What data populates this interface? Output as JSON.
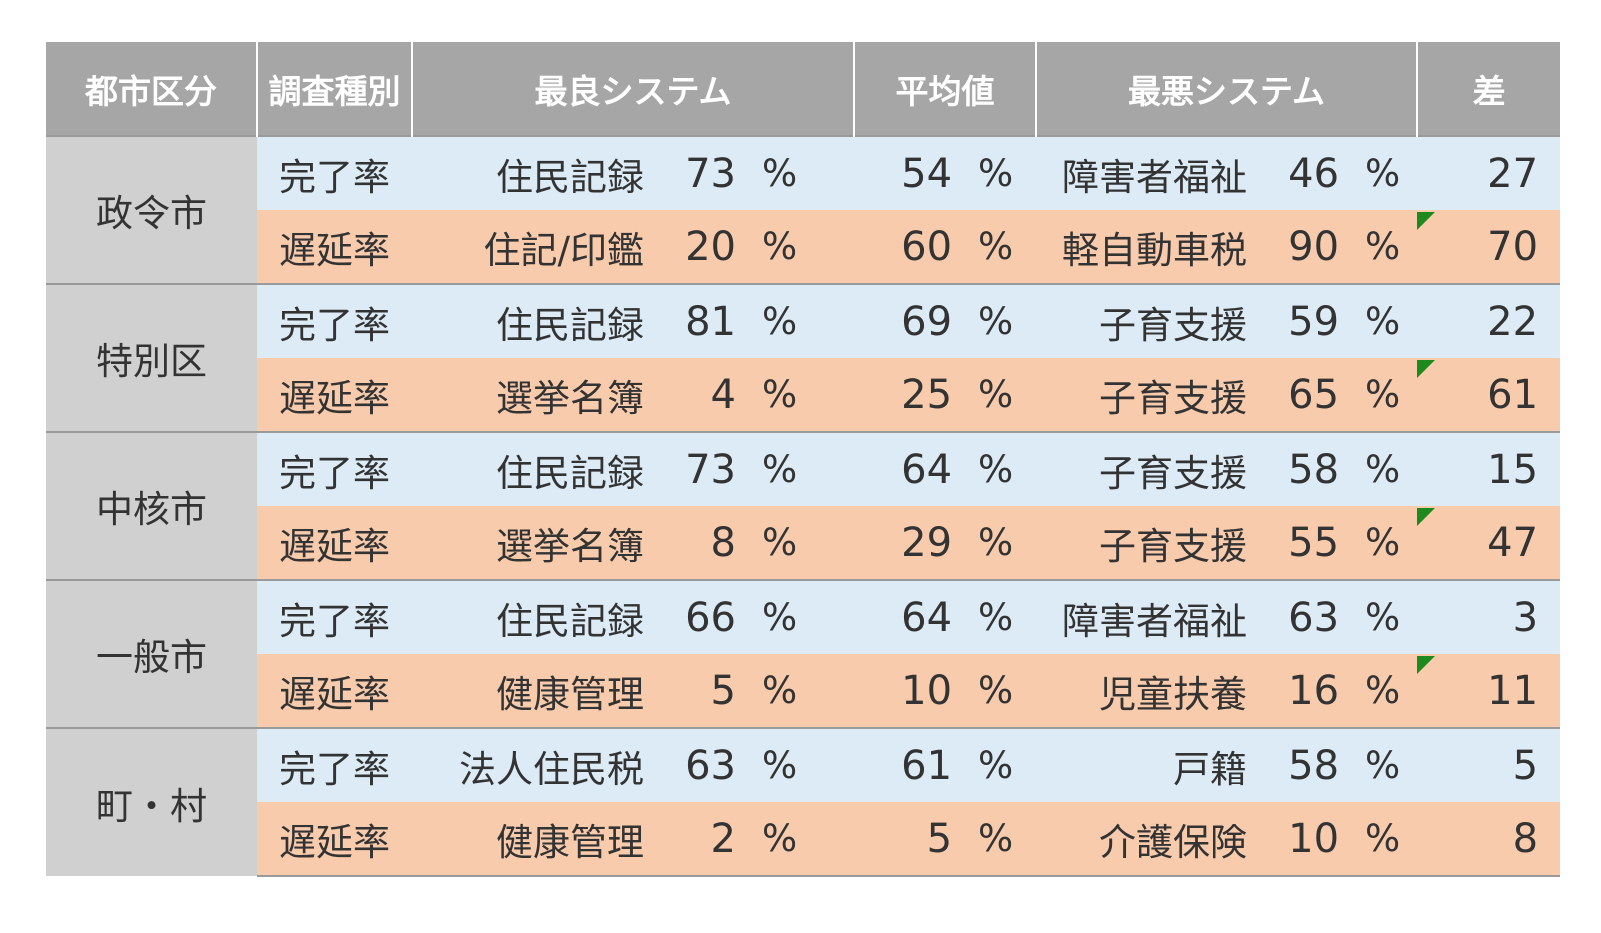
{
  "headers": {
    "city": "都市区分",
    "type": "調査種別",
    "best": "最良システム",
    "avg": "平均値",
    "worst": "最悪システム",
    "diff": "差"
  },
  "percent_sign": "%",
  "groups": [
    {
      "city": "政令市",
      "rows": [
        {
          "type": "完了率",
          "best_system": "住民記録",
          "best_value": "73",
          "avg_value": "54",
          "worst_system": "障害者福祉",
          "worst_value": "46",
          "diff": "27",
          "flag": false
        },
        {
          "type": "遅延率",
          "best_system": "住記/印鑑",
          "best_value": "20",
          "avg_value": "60",
          "worst_system": "軽自動車税",
          "worst_value": "90",
          "diff": "70",
          "flag": true
        }
      ]
    },
    {
      "city": "特別区",
      "rows": [
        {
          "type": "完了率",
          "best_system": "住民記録",
          "best_value": "81",
          "avg_value": "69",
          "worst_system": "子育支援",
          "worst_value": "59",
          "diff": "22",
          "flag": false
        },
        {
          "type": "遅延率",
          "best_system": "選挙名簿",
          "best_value": "4",
          "avg_value": "25",
          "worst_system": "子育支援",
          "worst_value": "65",
          "diff": "61",
          "flag": true
        }
      ]
    },
    {
      "city": "中核市",
      "rows": [
        {
          "type": "完了率",
          "best_system": "住民記録",
          "best_value": "73",
          "avg_value": "64",
          "worst_system": "子育支援",
          "worst_value": "58",
          "diff": "15",
          "flag": false
        },
        {
          "type": "遅延率",
          "best_system": "選挙名簿",
          "best_value": "8",
          "avg_value": "29",
          "worst_system": "子育支援",
          "worst_value": "55",
          "diff": "47",
          "flag": true
        }
      ]
    },
    {
      "city": "一般市",
      "rows": [
        {
          "type": "完了率",
          "best_system": "住民記録",
          "best_value": "66",
          "avg_value": "64",
          "worst_system": "障害者福祉",
          "worst_value": "63",
          "diff": "3",
          "flag": false
        },
        {
          "type": "遅延率",
          "best_system": "健康管理",
          "best_value": "5",
          "avg_value": "10",
          "worst_system": "児童扶養",
          "worst_value": "16",
          "diff": "11",
          "flag": true
        }
      ]
    },
    {
      "city": "町・村",
      "rows": [
        {
          "type": "完了率",
          "best_system": "法人住民税",
          "best_value": "63",
          "avg_value": "61",
          "worst_system": "戸籍",
          "worst_value": "58",
          "diff": "5",
          "flag": false
        },
        {
          "type": "遅延率",
          "best_system": "健康管理",
          "best_value": "2",
          "avg_value": "5",
          "worst_system": "介護保険",
          "worst_value": "10",
          "diff": "8",
          "flag": false
        }
      ]
    }
  ],
  "colors": {
    "header_bg": "#a6a6a6",
    "city_bg": "#d0d0d0",
    "completion_row_bg": "#ddebf7",
    "delay_row_bg": "#f8cbad",
    "flag": "#1e8a1e"
  }
}
